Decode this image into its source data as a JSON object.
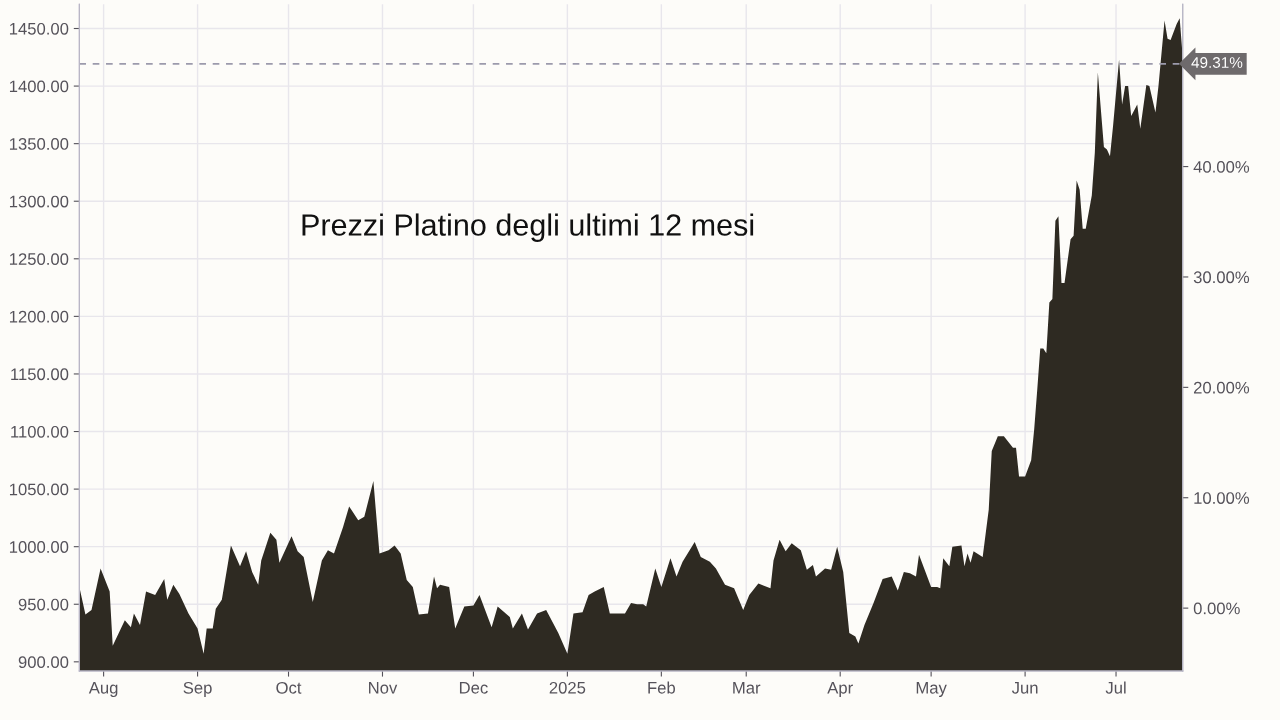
{
  "chart_data": {
    "type": "area",
    "title": "Prezzi Platino degli ultimi 12 mesi",
    "x": [
      "2024-07-24",
      "2024-07-26",
      "2024-07-28",
      "2024-07-31",
      "2024-08-03",
      "2024-08-04",
      "2024-08-08",
      "2024-08-10",
      "2024-08-11",
      "2024-08-13",
      "2024-08-15",
      "2024-08-18",
      "2024-08-21",
      "2024-08-22",
      "2024-08-24",
      "2024-08-26",
      "2024-08-29",
      "2024-09-01",
      "2024-09-03",
      "2024-09-04",
      "2024-09-06",
      "2024-09-07",
      "2024-09-09",
      "2024-09-12",
      "2024-09-15",
      "2024-09-17",
      "2024-09-19",
      "2024-09-21",
      "2024-09-22",
      "2024-09-25",
      "2024-09-27",
      "2024-09-28",
      "2024-10-02",
      "2024-10-04",
      "2024-10-06",
      "2024-10-09",
      "2024-10-12",
      "2024-10-14",
      "2024-10-16",
      "2024-10-19",
      "2024-10-21",
      "2024-10-24",
      "2024-10-26",
      "2024-10-29",
      "2024-10-31",
      "2024-11-03",
      "2024-11-05",
      "2024-11-07",
      "2024-11-09",
      "2024-11-11",
      "2024-11-13",
      "2024-11-16",
      "2024-11-18",
      "2024-11-19",
      "2024-11-20",
      "2024-11-23",
      "2024-11-25",
      "2024-11-28",
      "2024-12-01",
      "2024-12-03",
      "2024-12-07",
      "2024-12-09",
      "2024-12-13",
      "2024-12-14",
      "2024-12-17",
      "2024-12-19",
      "2024-12-22",
      "2024-12-25",
      "2024-12-29",
      "2025-01-01",
      "2025-01-03",
      "2025-01-06",
      "2025-01-08",
      "2025-01-10",
      "2025-01-13",
      "2025-01-15",
      "2025-01-20",
      "2025-01-22",
      "2025-01-24",
      "2025-01-26",
      "2025-01-27",
      "2025-01-30",
      "2025-02-01",
      "2025-02-04",
      "2025-02-06",
      "2025-02-08",
      "2025-02-12",
      "2025-02-14",
      "2025-02-17",
      "2025-02-19",
      "2025-02-22",
      "2025-02-25",
      "2025-02-28",
      "2025-03-02",
      "2025-03-05",
      "2025-03-09",
      "2025-03-10",
      "2025-03-12",
      "2025-03-14",
      "2025-03-16",
      "2025-03-19",
      "2025-03-21",
      "2025-03-23",
      "2025-03-24",
      "2025-03-27",
      "2025-03-29",
      "2025-03-31",
      "2025-04-02",
      "2025-04-04",
      "2025-04-06",
      "2025-04-07",
      "2025-04-09",
      "2025-04-12",
      "2025-04-15",
      "2025-04-18",
      "2025-04-20",
      "2025-04-22",
      "2025-04-24",
      "2025-04-26",
      "2025-04-27",
      "2025-05-01",
      "2025-05-03",
      "2025-05-04",
      "2025-05-05",
      "2025-05-07",
      "2025-05-08",
      "2025-05-11",
      "2025-05-12",
      "2025-05-13",
      "2025-05-14",
      "2025-05-15",
      "2025-05-18",
      "2025-05-20",
      "2025-05-21",
      "2025-05-23",
      "2025-05-25",
      "2025-05-28",
      "2025-05-29",
      "2025-05-30",
      "2025-06-01",
      "2025-06-03",
      "2025-06-04",
      "2025-06-05",
      "2025-06-06",
      "2025-06-07",
      "2025-06-08",
      "2025-06-09",
      "2025-06-10",
      "2025-06-11",
      "2025-06-12",
      "2025-06-13",
      "2025-06-14",
      "2025-06-16",
      "2025-06-17",
      "2025-06-18",
      "2025-06-19",
      "2025-06-20",
      "2025-06-21",
      "2025-06-23",
      "2025-06-24",
      "2025-06-25",
      "2025-06-27",
      "2025-06-28",
      "2025-06-29",
      "2025-06-30",
      "2025-07-02",
      "2025-07-03",
      "2025-07-04",
      "2025-07-05",
      "2025-07-06",
      "2025-07-08",
      "2025-07-09",
      "2025-07-11",
      "2025-07-12",
      "2025-07-14",
      "2025-07-15",
      "2025-07-17",
      "2025-07-18",
      "2025-07-19",
      "2025-07-21",
      "2025-07-22",
      "2025-07-23"
    ],
    "series": [
      {
        "color": "#2e2a22",
        "values": [
          965,
          941,
          945,
          981,
          961,
          914,
          936,
          930,
          942,
          932,
          961,
          958,
          972,
          954,
          967,
          959,
          942,
          929,
          907,
          929,
          929,
          946,
          954,
          1001,
          983,
          996,
          978,
          967,
          988,
          1012,
          1006,
          986,
          1009,
          996,
          991,
          952,
          988,
          997,
          994,
          1017,
          1035,
          1023,
          1026,
          1057,
          994,
          997,
          1001,
          994,
          971,
          965,
          941,
          942,
          974,
          964,
          967,
          965,
          929,
          948,
          949,
          958,
          930,
          948,
          939,
          929,
          942,
          928,
          942,
          945,
          925,
          907,
          942,
          943,
          958,
          961,
          965,
          942,
          942,
          951,
          950,
          950,
          948,
          981,
          965,
          990,
          974,
          987,
          1004,
          991,
          987,
          981,
          967,
          964,
          945,
          958,
          968,
          964,
          988,
          1006,
          996,
          1003,
          997,
          980,
          984,
          974,
          981,
          980,
          1000,
          978,
          925,
          922,
          916,
          932,
          951,
          972,
          974,
          962,
          978,
          977,
          974,
          993,
          965,
          965,
          964,
          990,
          983,
          1000,
          1001,
          983,
          994,
          986,
          996,
          991,
          1032,
          1083,
          1096,
          1096,
          1086,
          1086,
          1061,
          1061,
          1075,
          1102,
          1136,
          1172,
          1172,
          1168,
          1212,
          1215,
          1283,
          1287,
          1229,
          1229,
          1267,
          1270,
          1318,
          1310,
          1276,
          1276,
          1305,
          1342,
          1412,
          1347,
          1345,
          1339,
          1365,
          1423,
          1384,
          1400,
          1400,
          1374,
          1384,
          1363,
          1401,
          1400,
          1377,
          1400,
          1457,
          1441,
          1440,
          1454,
          1459,
          1425
        ]
      }
    ],
    "xlim": [
      "2024-07-24",
      "2025-07-23"
    ],
    "xticks": [
      {
        "value": "2024-08-01",
        "label": "Aug"
      },
      {
        "value": "2024-09-01",
        "label": "Sep"
      },
      {
        "value": "2024-10-01",
        "label": "Oct"
      },
      {
        "value": "2024-11-01",
        "label": "Nov"
      },
      {
        "value": "2024-12-01",
        "label": "Dec"
      },
      {
        "value": "2025-01-01",
        "label": "2025"
      },
      {
        "value": "2025-02-01",
        "label": "Feb"
      },
      {
        "value": "2025-03-01",
        "label": "Mar"
      },
      {
        "value": "2025-04-01",
        "label": "Apr"
      },
      {
        "value": "2025-05-01",
        "label": "May"
      },
      {
        "value": "2025-06-01",
        "label": "Jun"
      },
      {
        "value": "2025-07-01",
        "label": "Jul"
      }
    ],
    "ylim": [
      892,
      1471
    ],
    "yticks": [
      {
        "value": 900,
        "label": "900.00"
      },
      {
        "value": 950,
        "label": "950.00"
      },
      {
        "value": 1000,
        "label": "1000.00"
      },
      {
        "value": 1050,
        "label": "1050.00"
      },
      {
        "value": 1100,
        "label": "1100.00"
      },
      {
        "value": 1150,
        "label": "1150.00"
      },
      {
        "value": 1200,
        "label": "1200.00"
      },
      {
        "value": 1250,
        "label": "1250.00"
      },
      {
        "value": 1300,
        "label": "1300.00"
      },
      {
        "value": 1350,
        "label": "1350.00"
      },
      {
        "value": 1400,
        "label": "1400.00"
      },
      {
        "value": 1450,
        "label": "1450.00"
      }
    ],
    "y2lim": [
      -5.7,
      54.7
    ],
    "y2ticks": [
      {
        "value": 0,
        "label": "0.00%"
      },
      {
        "value": 10,
        "label": "10.00%"
      },
      {
        "value": 20,
        "label": "20.00%"
      },
      {
        "value": 30,
        "label": "30.00%"
      },
      {
        "value": 40,
        "label": "40.00%"
      }
    ],
    "ref_lines": [
      {
        "axis": "y2",
        "value": 49.31,
        "label": "49.31%",
        "color": "#9c9aac",
        "line_style": "dashed"
      }
    ],
    "grid": true
  }
}
